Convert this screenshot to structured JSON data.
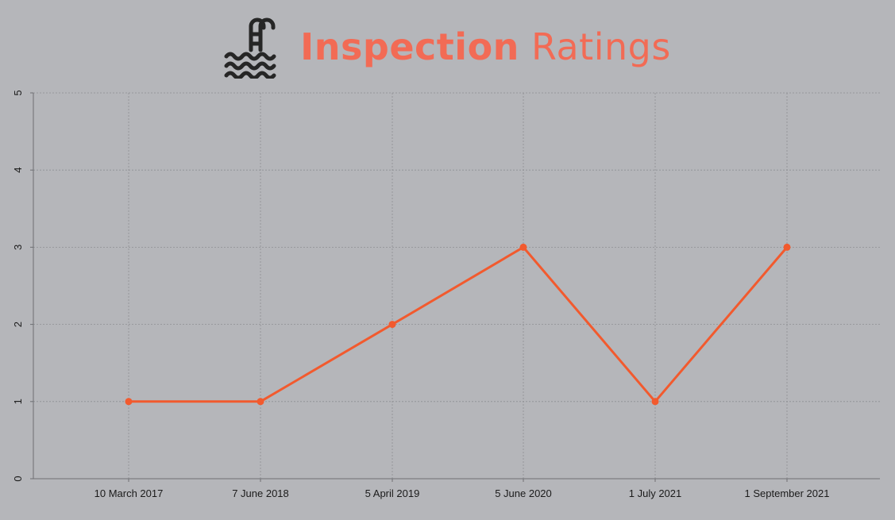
{
  "header": {
    "title_bold": "Inspection",
    "title_light": "Ratings",
    "icon": "swimming-pool-icon"
  },
  "colors": {
    "background": "#b5b6ba",
    "title": "#f26b55",
    "line": "#f25a2e",
    "grid": "#8e8f93",
    "axis": "#6e6f73"
  },
  "chart_data": {
    "type": "line",
    "categories": [
      "10 March 2017",
      "7 June 2018",
      "5 April 2019",
      "5 June 2020",
      "1 July 2021",
      "1 September 2021"
    ],
    "series": [
      {
        "values": [
          1,
          1,
          2,
          3,
          1,
          3
        ]
      }
    ],
    "title": "Inspection Ratings",
    "xlabel": "",
    "ylabel": "",
    "ylim": [
      0,
      5
    ],
    "yticks": [
      "0",
      "1",
      "2",
      "3",
      "4",
      "5"
    ],
    "grid": true,
    "legend": "none"
  }
}
